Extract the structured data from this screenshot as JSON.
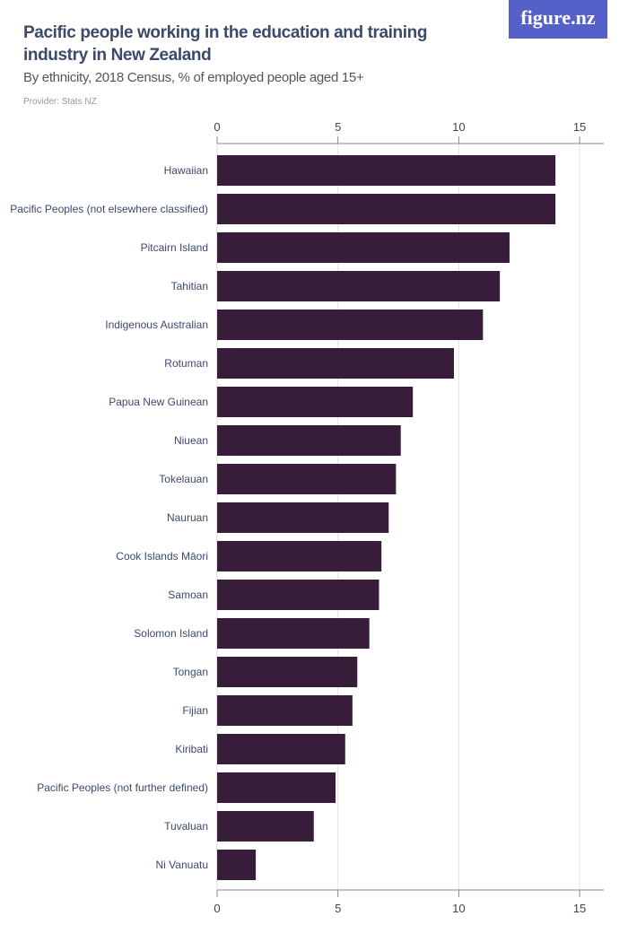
{
  "header": {
    "title": "Pacific people working in the education and training industry in New Zealand",
    "subtitle": "By ethnicity, 2018 Census, % of employed people aged 15+",
    "provider": "Provider: Stats NZ",
    "logo_text": "figure.nz"
  },
  "colors": {
    "bar": "#371d3a",
    "logo_bg": "#5560c8",
    "title": "#3b4a6b"
  },
  "chart_data": {
    "type": "bar",
    "orientation": "horizontal",
    "title": "Pacific people working in the education and training industry in New Zealand",
    "subtitle": "By ethnicity, 2018 Census, % of employed people aged 15+",
    "xlabel": "",
    "ylabel": "",
    "xlim": [
      0,
      16
    ],
    "xticks": [
      0,
      5,
      10,
      15
    ],
    "grid": true,
    "categories": [
      "Hawaiian",
      "Pacific Peoples (not elsewhere classified)",
      "Pitcairn Island",
      "Tahitian",
      "Indigenous Australian",
      "Rotuman",
      "Papua New Guinean",
      "Niuean",
      "Tokelauan",
      "Nauruan",
      "Cook Islands Māori",
      "Samoan",
      "Solomon Island",
      "Tongan",
      "Fijian",
      "Kiribati",
      "Pacific Peoples (not further defined)",
      "Tuvaluan",
      "Ni Vanuatu"
    ],
    "values": [
      14.0,
      14.0,
      12.1,
      11.7,
      11.0,
      9.8,
      8.1,
      7.6,
      7.4,
      7.1,
      6.8,
      6.7,
      6.3,
      5.8,
      5.6,
      5.3,
      4.9,
      4.0,
      1.6
    ]
  }
}
